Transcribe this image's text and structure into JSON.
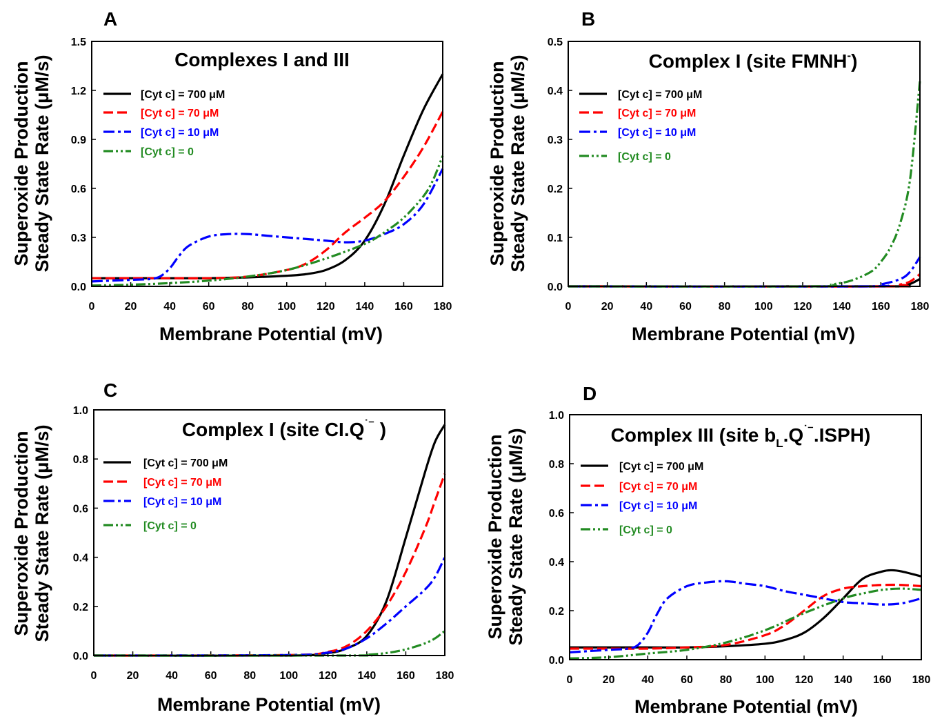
{
  "figure": {
    "xlabel": "Membrane Potential  (mV)",
    "ylabel_lines": [
      "Superoxide Production",
      "Steady State Rate (μM/s)"
    ]
  },
  "legend_entries": [
    {
      "key": "700",
      "label": "[Cyt c] = 700 μM",
      "color": "#000000",
      "dash": "solid"
    },
    {
      "key": "70",
      "label": "[Cyt c] = 70 μM",
      "color": "#ff0000",
      "dash": "dashed"
    },
    {
      "key": "10",
      "label": "[Cyt c] = 10 μM",
      "color": "#0000ff",
      "dash": "dashdot"
    },
    {
      "key": "0",
      "label": "[Cyt c] = 0",
      "color": "#228b22",
      "dash": "dashdotdot"
    }
  ],
  "chart_data": [
    {
      "panel": "A",
      "type": "line",
      "title": "Complexes I and III",
      "xlabel": "Membrane Potential  (mV)",
      "ylabel": "Superoxide Production Steady State Rate (μM/s)",
      "xlim": [
        0,
        180
      ],
      "ylim": [
        0,
        1.5
      ],
      "xticks": [
        0,
        20,
        40,
        60,
        80,
        100,
        120,
        140,
        160,
        180
      ],
      "yticks": [
        "0.0",
        "0.3",
        "0.6",
        "0.9",
        "1.2",
        "1.5"
      ],
      "grid": false,
      "legend_position": "upper-left",
      "series": [
        {
          "name": "[Cyt c] = 700 μM",
          "x": [
            0,
            20,
            40,
            60,
            80,
            100,
            110,
            120,
            130,
            140,
            150,
            160,
            170,
            180
          ],
          "y": [
            0.05,
            0.05,
            0.05,
            0.05,
            0.055,
            0.065,
            0.075,
            0.1,
            0.16,
            0.28,
            0.5,
            0.8,
            1.08,
            1.3
          ]
        },
        {
          "name": "[Cyt c] = 70 μM",
          "x": [
            0,
            20,
            40,
            60,
            80,
            100,
            110,
            120,
            130,
            140,
            150,
            160,
            170,
            180
          ],
          "y": [
            0.05,
            0.05,
            0.05,
            0.05,
            0.06,
            0.1,
            0.14,
            0.22,
            0.33,
            0.42,
            0.52,
            0.67,
            0.85,
            1.07
          ]
        },
        {
          "name": "[Cyt c] = 10 μM",
          "x": [
            0,
            20,
            30,
            35,
            40,
            45,
            50,
            60,
            70,
            80,
            90,
            100,
            110,
            120,
            130,
            140,
            150,
            160,
            170,
            180
          ],
          "y": [
            0.03,
            0.04,
            0.045,
            0.06,
            0.11,
            0.19,
            0.25,
            0.305,
            0.32,
            0.32,
            0.31,
            0.3,
            0.29,
            0.28,
            0.27,
            0.28,
            0.32,
            0.38,
            0.5,
            0.72
          ]
        },
        {
          "name": "[Cyt c] = 0",
          "x": [
            0,
            20,
            40,
            60,
            80,
            100,
            120,
            140,
            150,
            160,
            170,
            175,
            180
          ],
          "y": [
            0.005,
            0.01,
            0.02,
            0.035,
            0.06,
            0.1,
            0.17,
            0.26,
            0.33,
            0.42,
            0.55,
            0.65,
            0.8
          ]
        }
      ]
    },
    {
      "panel": "B",
      "type": "line",
      "title": "Complex I  (site FMNH⁻)",
      "xlabel": "Membrane Potential  (mV)",
      "ylabel": "Superoxide Production Steady State Rate (μM/s)",
      "xlim": [
        0,
        180
      ],
      "ylim": [
        0,
        0.5
      ],
      "xticks": [
        0,
        20,
        40,
        60,
        80,
        100,
        120,
        140,
        160,
        180
      ],
      "yticks": [
        "0.0",
        "0.1",
        "0.2",
        "0.3",
        "0.4",
        "0.5"
      ],
      "grid": false,
      "legend_position": "upper-left",
      "series": [
        {
          "name": "[Cyt c] = 700 μM",
          "x": [
            0,
            160,
            170,
            175,
            180
          ],
          "y": [
            0,
            0,
            0.001,
            0.005,
            0.015
          ]
        },
        {
          "name": "[Cyt c] = 70 μM",
          "x": [
            0,
            160,
            170,
            175,
            180
          ],
          "y": [
            0,
            0,
            0.004,
            0.01,
            0.025
          ]
        },
        {
          "name": "[Cyt c] = 10 μM",
          "x": [
            0,
            150,
            160,
            170,
            175,
            180
          ],
          "y": [
            0,
            0,
            0.004,
            0.015,
            0.03,
            0.06
          ]
        },
        {
          "name": "[Cyt c] = 0",
          "x": [
            0,
            125,
            135,
            145,
            155,
            160,
            165,
            170,
            175,
            180
          ],
          "y": [
            0,
            0,
            0.004,
            0.012,
            0.03,
            0.05,
            0.08,
            0.13,
            0.22,
            0.42
          ]
        }
      ]
    },
    {
      "panel": "C",
      "type": "line",
      "title": "Complex I  (site CI.Q˙⁻ )",
      "xlabel": "Membrane Potential  (mV)",
      "ylabel": "Superoxide Production Steady State Rate (μM/s)",
      "xlim": [
        0,
        180
      ],
      "ylim": [
        0,
        1.0
      ],
      "xticks": [
        0,
        20,
        40,
        60,
        80,
        100,
        120,
        140,
        160,
        180
      ],
      "yticks": [
        "0.0",
        "0.2",
        "0.4",
        "0.6",
        "0.8",
        "1.0"
      ],
      "grid": false,
      "legend_position": "upper-left",
      "series": [
        {
          "name": "[Cyt c] = 700 μM",
          "x": [
            0,
            100,
            120,
            130,
            140,
            150,
            160,
            170,
            175,
            180
          ],
          "y": [
            0,
            0,
            0.01,
            0.03,
            0.08,
            0.22,
            0.48,
            0.75,
            0.87,
            0.94
          ]
        },
        {
          "name": "[Cyt c] = 70 μM",
          "x": [
            0,
            100,
            120,
            130,
            140,
            150,
            160,
            170,
            175,
            180
          ],
          "y": [
            0,
            0.002,
            0.015,
            0.04,
            0.1,
            0.2,
            0.34,
            0.52,
            0.63,
            0.74
          ]
        },
        {
          "name": "[Cyt c] = 10 μM",
          "x": [
            0,
            100,
            120,
            130,
            140,
            150,
            160,
            170,
            175,
            180
          ],
          "y": [
            0,
            0.002,
            0.012,
            0.03,
            0.07,
            0.13,
            0.2,
            0.27,
            0.32,
            0.4
          ]
        },
        {
          "name": "[Cyt c] = 0",
          "x": [
            0,
            130,
            140,
            150,
            160,
            170,
            175,
            180
          ],
          "y": [
            0,
            0,
            0.003,
            0.01,
            0.025,
            0.05,
            0.07,
            0.1
          ]
        }
      ]
    },
    {
      "panel": "D",
      "type": "line",
      "title": "Complex III  (site b_L.Q˙⁻.ISPH)",
      "xlabel": "Membrane Potential  (mV)",
      "ylabel": "Superoxide Production Steady State Rate (μM/s)",
      "xlim": [
        0,
        180
      ],
      "ylim": [
        0,
        1.0
      ],
      "xticks": [
        0,
        20,
        40,
        60,
        80,
        100,
        120,
        140,
        160,
        180
      ],
      "yticks": [
        "0.0",
        "0.2",
        "0.4",
        "0.6",
        "0.8",
        "1.0"
      ],
      "grid": false,
      "legend_position": "upper-left",
      "series": [
        {
          "name": "[Cyt c] = 700 μM",
          "x": [
            0,
            20,
            40,
            60,
            80,
            100,
            110,
            120,
            130,
            140,
            150,
            160,
            165,
            170,
            180
          ],
          "y": [
            0.05,
            0.05,
            0.05,
            0.05,
            0.055,
            0.065,
            0.08,
            0.11,
            0.17,
            0.25,
            0.33,
            0.36,
            0.365,
            0.36,
            0.34
          ]
        },
        {
          "name": "[Cyt c] = 70 μM",
          "x": [
            0,
            20,
            40,
            60,
            80,
            100,
            110,
            120,
            130,
            140,
            150,
            160,
            170,
            180
          ],
          "y": [
            0.045,
            0.045,
            0.045,
            0.05,
            0.06,
            0.1,
            0.14,
            0.2,
            0.26,
            0.29,
            0.3,
            0.305,
            0.305,
            0.3
          ]
        },
        {
          "name": "[Cyt c] = 10 μM",
          "x": [
            0,
            20,
            30,
            35,
            40,
            45,
            50,
            60,
            70,
            80,
            90,
            100,
            110,
            120,
            130,
            140,
            150,
            160,
            170,
            180
          ],
          "y": [
            0.03,
            0.04,
            0.045,
            0.06,
            0.11,
            0.19,
            0.25,
            0.3,
            0.315,
            0.32,
            0.31,
            0.3,
            0.28,
            0.265,
            0.25,
            0.235,
            0.23,
            0.225,
            0.23,
            0.25
          ]
        },
        {
          "name": "[Cyt c] = 0",
          "x": [
            0,
            20,
            40,
            60,
            80,
            100,
            120,
            140,
            150,
            160,
            170,
            180
          ],
          "y": [
            0.005,
            0.01,
            0.025,
            0.04,
            0.07,
            0.12,
            0.19,
            0.25,
            0.27,
            0.285,
            0.29,
            0.285
          ]
        }
      ]
    }
  ],
  "panels": [
    {
      "letter": "A",
      "title": "Complexes I and III"
    },
    {
      "letter": "B",
      "title_main": "Complex I  (site FMNH",
      "title_sup": "-",
      "title_tail": ")"
    },
    {
      "letter": "C",
      "title_main": "Complex I  (site CI.Q",
      "title_sup": "˙⁻",
      "title_tail": " )"
    },
    {
      "letter": "D",
      "title_main": "Complex III  (site b",
      "title_sub": "L",
      "title_mid": ".Q",
      "title_sup": "˙⁻",
      "title_tail": ".ISPH)"
    }
  ]
}
